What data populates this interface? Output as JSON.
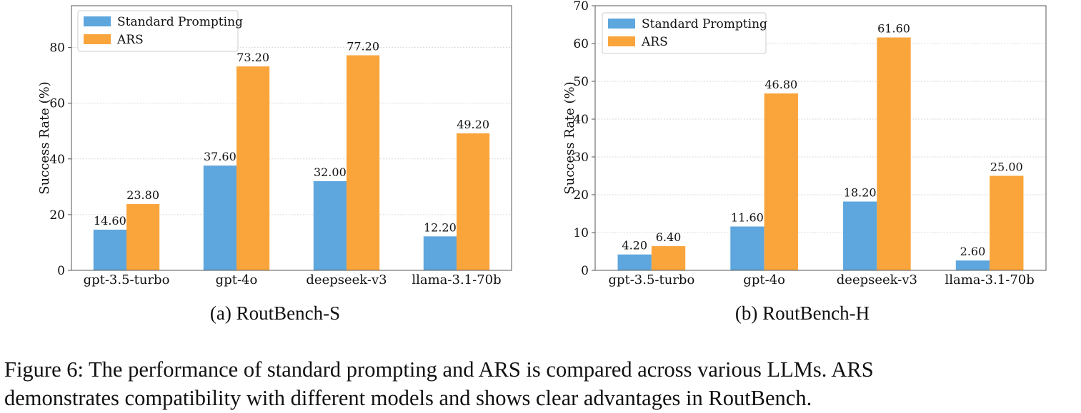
{
  "colors": {
    "standard": "#5ea6de",
    "ars": "#faa53c",
    "grid": "#d9d9d9",
    "frame": "#555555"
  },
  "chart_data": [
    {
      "type": "bar",
      "subcaption": "(a) RoutBench-S",
      "categories": [
        "gpt-3.5-turbo",
        "gpt-4o",
        "deepseek-v3",
        "llama-3.1-70b"
      ],
      "series": [
        {
          "name": "Standard Prompting",
          "values": [
            14.6,
            37.6,
            32.0,
            12.2
          ],
          "labels": [
            "14.60",
            "37.60",
            "32.00",
            "12.20"
          ]
        },
        {
          "name": "ARS",
          "values": [
            23.8,
            73.2,
            77.2,
            49.2
          ],
          "labels": [
            "23.80",
            "73.20",
            "77.20",
            "49.20"
          ]
        }
      ],
      "ylabel": "Success Rate (%)",
      "ylim": [
        0,
        95
      ],
      "yticks": [
        0,
        20,
        40,
        60,
        80
      ],
      "grid": true,
      "legend": "top-left"
    },
    {
      "type": "bar",
      "subcaption": "(b) RoutBench-H",
      "categories": [
        "gpt-3.5-turbo",
        "gpt-4o",
        "deepseek-v3",
        "llama-3.1-70b"
      ],
      "series": [
        {
          "name": "Standard Prompting",
          "values": [
            4.2,
            11.6,
            18.2,
            2.6
          ],
          "labels": [
            "4.20",
            "11.60",
            "18.20",
            "2.60"
          ]
        },
        {
          "name": "ARS",
          "values": [
            6.4,
            46.8,
            61.6,
            25.0
          ],
          "labels": [
            "6.40",
            "46.80",
            "61.60",
            "25.00"
          ]
        }
      ],
      "ylabel": "Success Rate (%)",
      "ylim": [
        0,
        70
      ],
      "yticks": [
        0,
        10,
        20,
        30,
        40,
        50,
        60,
        70
      ],
      "grid": true,
      "legend": "top-left"
    }
  ],
  "caption": {
    "line1": "Figure 6: The performance of standard prompting and ARS is compared across various LLMs. ARS",
    "line2": "demonstrates compatibility with different models and shows clear advantages in RoutBench."
  }
}
